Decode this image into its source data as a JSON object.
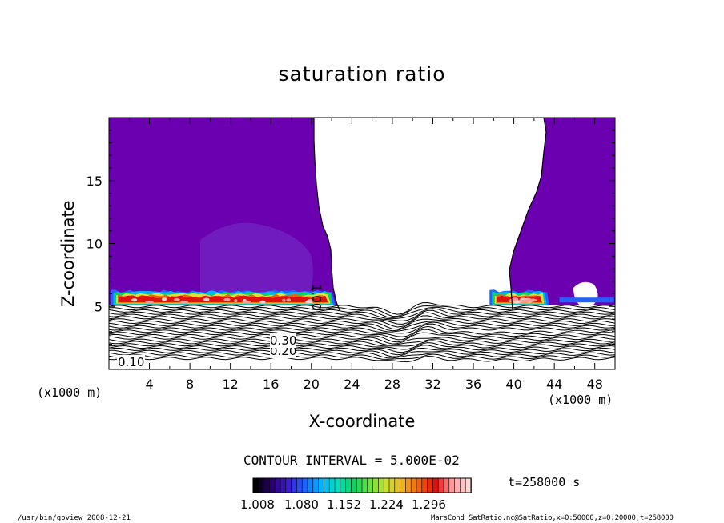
{
  "chart_data": {
    "type": "contour",
    "title": "saturation ratio",
    "xlabel": "X-coordinate",
    "ylabel": "Z-coordinate",
    "x_unit": "(x1000 m)",
    "z_unit": "(x1000 m)",
    "xlim": [
      0,
      50
    ],
    "ylim": [
      0,
      20
    ],
    "x_ticks": [
      4,
      8,
      12,
      16,
      20,
      24,
      28,
      32,
      36,
      40,
      44,
      48
    ],
    "y_ticks": [
      5,
      10,
      15
    ],
    "contour_interval_label": "CONTOUR INTERVAL = 5.000E-02",
    "contour_labels": [
      "0.10",
      "0.20",
      "0.30",
      "1.00"
    ],
    "colorbar": {
      "min": 1.008,
      "max": 1.332,
      "tick_labels": [
        "1.008",
        "1.080",
        "1.152",
        "1.224",
        "1.296"
      ],
      "colors": [
        "#000000",
        "#2a0070",
        "#3b1fd0",
        "#1f64ff",
        "#00b4ff",
        "#00e0c0",
        "#10d060",
        "#70e040",
        "#c8e030",
        "#f0b020",
        "#f06010",
        "#e01010",
        "#ff9a9a",
        "#ffd8d8"
      ]
    },
    "fill_color_saturated": "#6a00b0",
    "time_label": "t=258000 s"
  },
  "footer": {
    "left": "/usr/bin/gpview   2008-12-21",
    "right": "MarsCond_SatRatio.nc@SatRatio,x=0:50000,z=0:20000,t=258000"
  }
}
